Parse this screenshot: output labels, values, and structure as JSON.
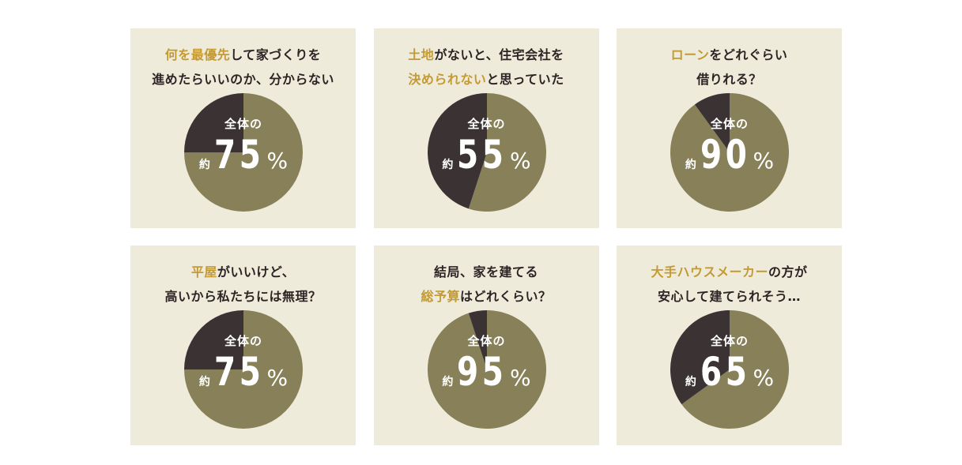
{
  "colors": {
    "card_bg": "#efebdb",
    "olive": "#878059",
    "dark": "#3b3333",
    "highlight": "#c39a34",
    "text": "#2b2424"
  },
  "label_common": {
    "top": "全体の",
    "prefix": "約",
    "suffix": "%"
  },
  "chart_data": [
    {
      "type": "pie",
      "caption_lines": [
        [
          {
            "text": "何を最優先",
            "hl": true
          },
          {
            "text": "して家づくりを",
            "hl": false
          }
        ],
        [
          {
            "text": "進めたらいいのか、分からない",
            "hl": false
          }
        ]
      ],
      "value_label": "75",
      "slices": [
        {
          "value": 75,
          "color": "#878059"
        },
        {
          "value": 25,
          "color": "#3b3333"
        }
      ]
    },
    {
      "type": "pie",
      "caption_lines": [
        [
          {
            "text": "土地",
            "hl": true
          },
          {
            "text": "がないと、住宅会社を",
            "hl": false
          }
        ],
        [
          {
            "text": "決められない",
            "hl": true
          },
          {
            "text": "と思っていた",
            "hl": false
          }
        ]
      ],
      "value_label": "55",
      "slices": [
        {
          "value": 55,
          "color": "#878059"
        },
        {
          "value": 45,
          "color": "#3b3333"
        }
      ]
    },
    {
      "type": "pie",
      "caption_lines": [
        [
          {
            "text": "ローン",
            "hl": true
          },
          {
            "text": "をどれぐらい",
            "hl": false
          }
        ],
        [
          {
            "text": "借りれる？",
            "hl": false
          }
        ]
      ],
      "value_label": "90",
      "slices": [
        {
          "value": 90,
          "color": "#878059"
        },
        {
          "value": 10,
          "color": "#3b3333"
        }
      ]
    },
    {
      "type": "pie",
      "caption_lines": [
        [
          {
            "text": "平屋",
            "hl": true
          },
          {
            "text": "がいいけど、",
            "hl": false
          }
        ],
        [
          {
            "text": "高いから私たちには無理？",
            "hl": false
          }
        ]
      ],
      "value_label": "75",
      "slices": [
        {
          "value": 75,
          "color": "#878059"
        },
        {
          "value": 25,
          "color": "#3b3333"
        }
      ]
    },
    {
      "type": "pie",
      "caption_lines": [
        [
          {
            "text": "結局、家を建てる",
            "hl": false
          }
        ],
        [
          {
            "text": "総予算",
            "hl": true
          },
          {
            "text": "はどれくらい？",
            "hl": false
          }
        ]
      ],
      "value_label": "95",
      "slices": [
        {
          "value": 95,
          "color": "#878059"
        },
        {
          "value": 5,
          "color": "#3b3333"
        }
      ]
    },
    {
      "type": "pie",
      "caption_lines": [
        [
          {
            "text": "大手ハウスメーカー",
            "hl": true
          },
          {
            "text": "の方が",
            "hl": false
          }
        ],
        [
          {
            "text": "安心して建てられそう…",
            "hl": false
          }
        ]
      ],
      "value_label": "65",
      "slices": [
        {
          "value": 65,
          "color": "#878059"
        },
        {
          "value": 35,
          "color": "#3b3333"
        }
      ]
    }
  ]
}
